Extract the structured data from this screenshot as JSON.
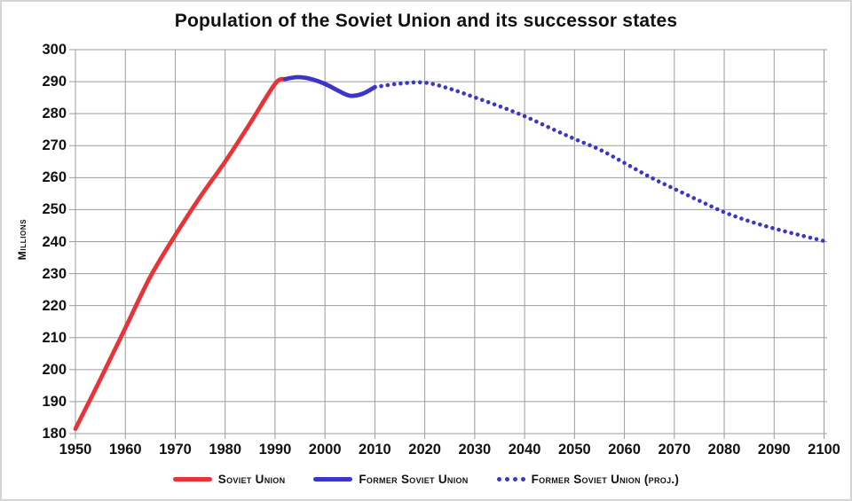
{
  "title": "Population of the Soviet Union and its successor states",
  "y_axis_label": "Millions",
  "colors": {
    "soviet_red": "#e73439",
    "fsu_blue": "#3c35c8",
    "grid": "#9c9c9c",
    "text": "#111111",
    "border": "#d4d4d4"
  },
  "legend": [
    {
      "label": "Soviet Union",
      "style": "solid",
      "color": "#e73439"
    },
    {
      "label": "Former Soviet Union",
      "style": "solid",
      "color": "#3c35c8"
    },
    {
      "label": "Former Soviet Union (proj.)",
      "style": "dotted",
      "color": "#3c35c8"
    }
  ],
  "chart_data": {
    "type": "line",
    "title": "Population of the Soviet Union and its successor states",
    "xlabel": "",
    "ylabel": "Millions",
    "xlim": [
      1950,
      2100
    ],
    "ylim": [
      180,
      300
    ],
    "x_ticks": [
      1950,
      1960,
      1970,
      1980,
      1990,
      2000,
      2010,
      2020,
      2030,
      2040,
      2050,
      2060,
      2070,
      2080,
      2090,
      2100
    ],
    "y_ticks": [
      180,
      190,
      200,
      210,
      220,
      230,
      240,
      250,
      260,
      270,
      280,
      290,
      300
    ],
    "grid": true,
    "legend_position": "bottom",
    "series": [
      {
        "name": "Soviet Union",
        "style": "solid",
        "color": "#e73439",
        "x": [
          1950,
          1955,
          1960,
          1965,
          1970,
          1975,
          1980,
          1985,
          1990,
          1992
        ],
        "values": [
          181.5,
          197,
          213,
          229,
          242,
          254,
          265,
          277,
          289.3,
          290.8
        ]
      },
      {
        "name": "Former Soviet Union",
        "style": "solid",
        "color": "#3c35c8",
        "x": [
          1992,
          1994.5,
          1997,
          2000,
          2002.5,
          2005,
          2007.5,
          2010
        ],
        "values": [
          290.8,
          291.4,
          290.9,
          289.3,
          287.3,
          285.6,
          286.2,
          288.3
        ]
      },
      {
        "name": "Former Soviet Union (proj.)",
        "style": "dotted",
        "color": "#3c35c8",
        "x": [
          2010,
          2015,
          2020,
          2025,
          2030,
          2035,
          2040,
          2045,
          2050,
          2055,
          2060,
          2065,
          2070,
          2075,
          2080,
          2085,
          2090,
          2095,
          2100
        ],
        "values": [
          288.3,
          289.4,
          289.7,
          287.8,
          285.1,
          282.3,
          279.2,
          275.6,
          272.1,
          268.8,
          264.6,
          260.3,
          256.5,
          252.8,
          249.2,
          246.4,
          244.1,
          242.1,
          240.2
        ]
      }
    ]
  }
}
